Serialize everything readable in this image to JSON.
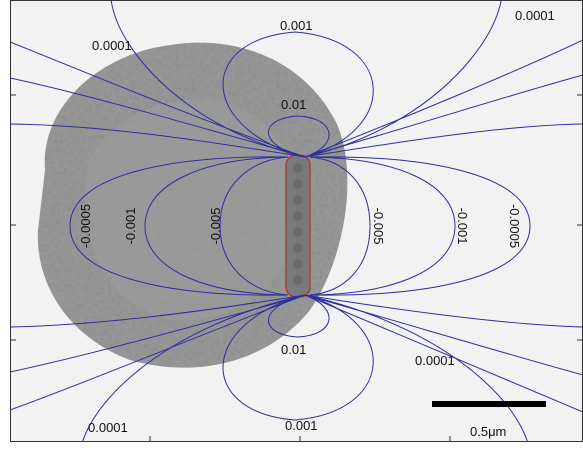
{
  "contour_labels": [
    {
      "id": "top-left",
      "text": "0.0001"
    },
    {
      "id": "top-right",
      "text": "0.0001"
    },
    {
      "id": "top-001",
      "text": "0.001"
    },
    {
      "id": "top-01",
      "text": "0.01"
    },
    {
      "id": "bottom-01",
      "text": "0.01"
    },
    {
      "id": "bottom-001",
      "text": "0.001"
    },
    {
      "id": "bottom-left",
      "text": "0.0001"
    },
    {
      "id": "bottom-right",
      "text": "0.0001"
    },
    {
      "id": "neg-left-00005",
      "text": "-0.0005"
    },
    {
      "id": "neg-left-0001",
      "text": "-0.001"
    },
    {
      "id": "neg-left-0005",
      "text": "-0.005"
    },
    {
      "id": "neg-right-0005",
      "text": "-0.005"
    },
    {
      "id": "neg-right-0001",
      "text": "-0.001"
    },
    {
      "id": "neg-right-00005",
      "text": "-0.0005"
    }
  ],
  "scale_bar": {
    "label": "0.5μm"
  },
  "colors": {
    "contour": "#2e2e9e",
    "cell": "#8c8c8c",
    "rod_outline": "#b03030",
    "frame": "#333333",
    "scale_bar": "#000000"
  }
}
